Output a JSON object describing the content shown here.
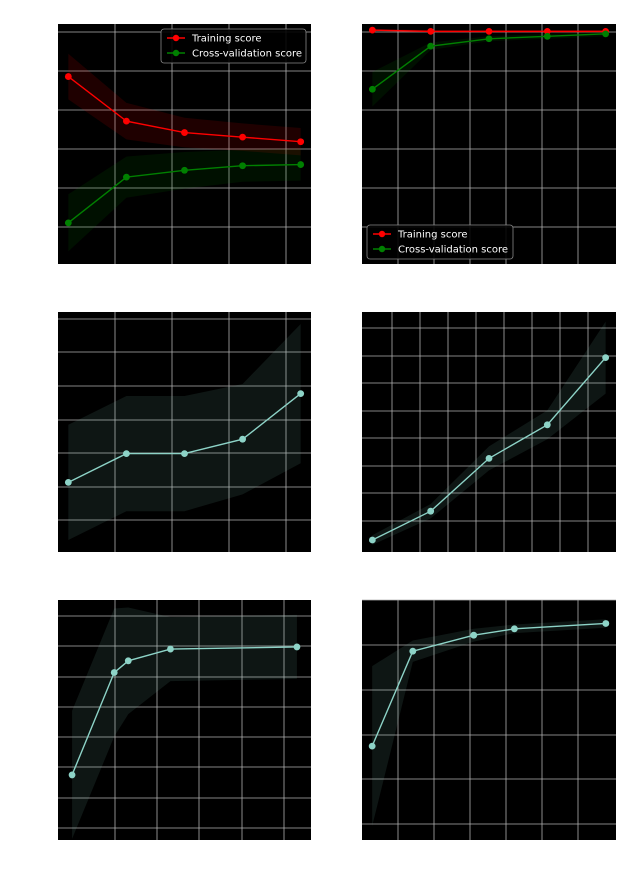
{
  "chart_data": [
    {
      "type": "line",
      "x": [
        100,
        325,
        550,
        775,
        1000
      ],
      "xlim": [
        60,
        1040
      ],
      "ylim": [
        0.8,
        1.01
      ],
      "grid": true,
      "legend": "top-right",
      "series": [
        {
          "name": "Training score",
          "color": "#ff0000",
          "values": [
            0.964,
            0.925,
            0.915,
            0.911,
            0.907
          ],
          "band": [
            0.02,
            0.016,
            0.013,
            0.012,
            0.012
          ]
        },
        {
          "name": "Cross-validation score",
          "color": "#008000",
          "values": [
            0.836,
            0.876,
            0.882,
            0.886,
            0.887
          ],
          "band": [
            0.025,
            0.018,
            0.016,
            0.014,
            0.014
          ]
        }
      ]
    },
    {
      "type": "line",
      "x": [
        100,
        325,
        550,
        775,
        1000
      ],
      "xlim": [
        60,
        1040
      ],
      "ylim": [
        0.81,
        1.005
      ],
      "grid": true,
      "legend": "bottom-left",
      "series": [
        {
          "name": "Training score",
          "color": "#ff0000",
          "values": [
            1.0,
            0.999,
            0.999,
            0.999,
            0.999
          ],
          "band": [
            0.001,
            0.001,
            0.001,
            0.001,
            0.001
          ]
        },
        {
          "name": "Cross-validation score",
          "color": "#008000",
          "values": [
            0.952,
            0.987,
            0.993,
            0.995,
            0.997
          ],
          "band": [
            0.014,
            0.003,
            0.002,
            0.002,
            0.002
          ]
        }
      ]
    },
    {
      "type": "line",
      "x": [
        100,
        325,
        550,
        775,
        1000
      ],
      "xlim": [
        60,
        1040
      ],
      "ylim": [
        0.0,
        1.0
      ],
      "grid": true,
      "series": [
        {
          "name": "",
          "color": "#8dd3c7",
          "values": [
            0.29,
            0.41,
            0.41,
            0.47,
            0.66
          ],
          "band": [
            0.24,
            0.24,
            0.24,
            0.23,
            0.29
          ]
        }
      ]
    },
    {
      "type": "line",
      "x": [
        100,
        325,
        550,
        775,
        1000
      ],
      "xlim": [
        60,
        1040
      ],
      "ylim": [
        0.0,
        1.0
      ],
      "grid": true,
      "series": [
        {
          "name": "",
          "color": "#8dd3c7",
          "values": [
            0.05,
            0.17,
            0.39,
            0.53,
            0.81
          ],
          "band": [
            0.02,
            0.03,
            0.05,
            0.06,
            0.15
          ]
        }
      ]
    },
    {
      "type": "line",
      "x": [
        0.84,
        0.855,
        0.86,
        0.875,
        0.92
      ],
      "xlim": [
        0.835,
        0.925
      ],
      "ylim": [
        0.78,
        1.005
      ],
      "grid": true,
      "series": [
        {
          "name": "",
          "color": "#8dd3c7",
          "values": [
            0.841,
            0.937,
            0.948,
            0.959,
            0.961
          ],
          "band": [
            0.06,
            0.06,
            0.05,
            0.03,
            0.03
          ]
        }
      ]
    },
    {
      "type": "line",
      "x": [
        0.79,
        0.81,
        0.84,
        0.86,
        0.905
      ],
      "xlim": [
        0.785,
        0.91
      ],
      "ylim": [
        0.78,
        1.005
      ],
      "grid": true,
      "series": [
        {
          "name": "",
          "color": "#8dd3c7",
          "values": [
            0.868,
            0.957,
            0.972,
            0.978,
            0.983
          ],
          "band": [
            0.075,
            0.01,
            0.006,
            0.004,
            0.004
          ]
        }
      ]
    }
  ]
}
